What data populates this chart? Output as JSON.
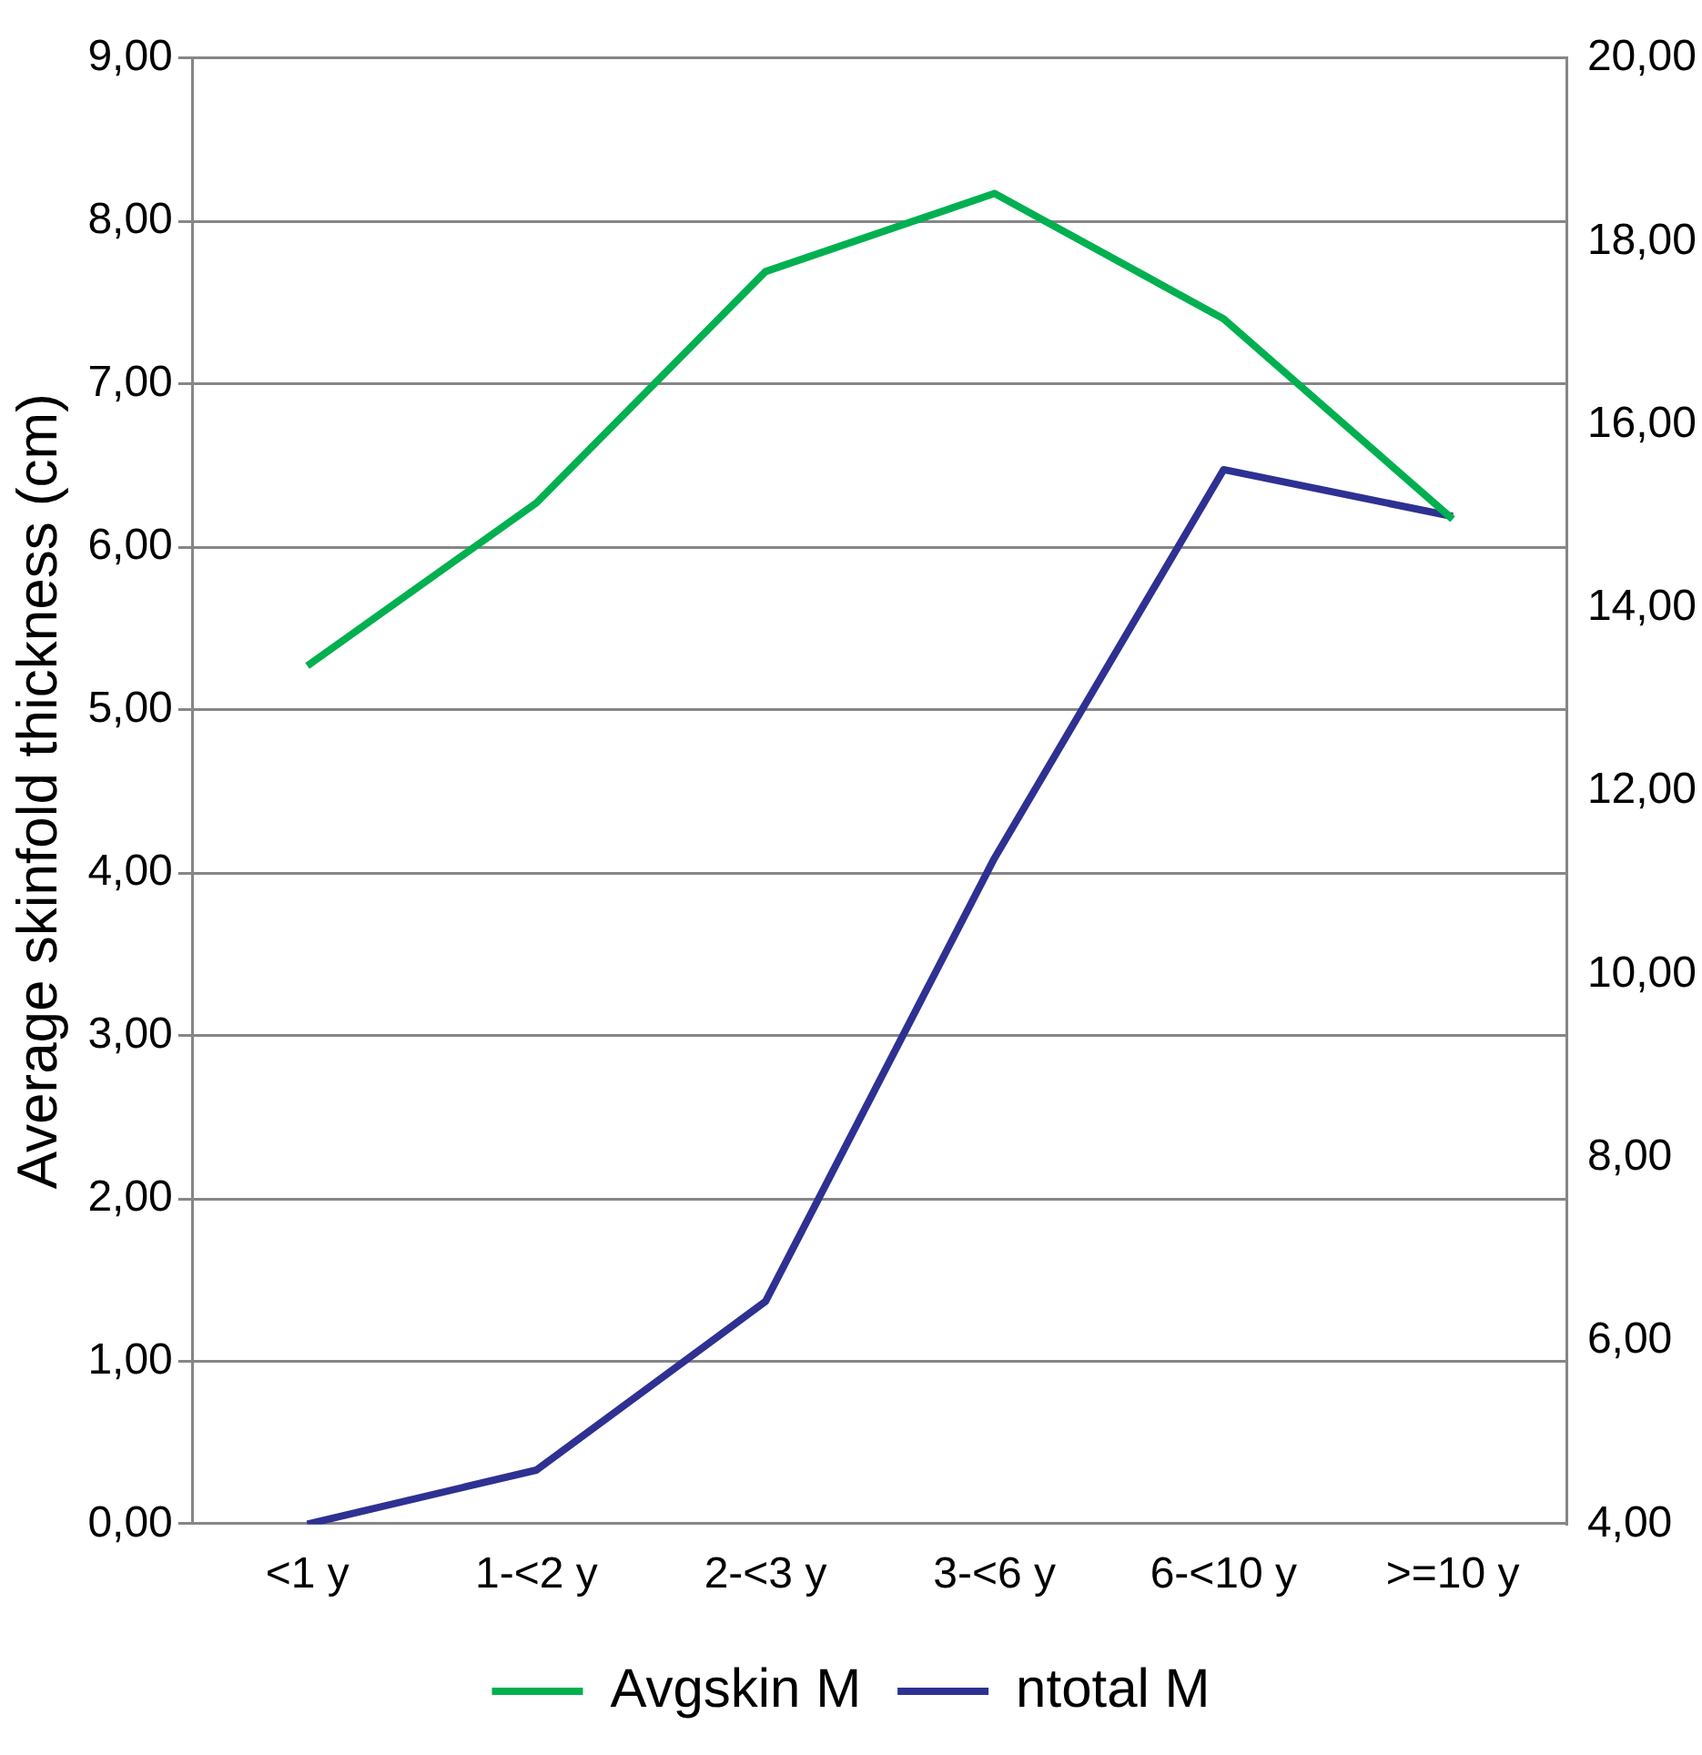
{
  "chart_data": {
    "type": "line",
    "ylabel": "Average skinfold thickness (cm)",
    "categories": [
      "<1 y",
      "1-<2 y",
      "2-<3 y",
      "3-<6 y",
      "6-<10 y",
      ">=10 y"
    ],
    "series": [
      {
        "name": "Avgskin M",
        "color": "#00b050",
        "values": [
          5.27,
          6.27,
          7.69,
          8.17,
          7.4,
          6.17
        ]
      },
      {
        "name": "ntotal M",
        "color": "#2e3192",
        "axis": "y2",
        "values": [
          4.0,
          4.59,
          6.43,
          11.27,
          15.51,
          15.0
        ]
      }
    ],
    "ylim": [
      0,
      9
    ],
    "yticks": [
      {
        "value": 0,
        "label": "0,00"
      },
      {
        "value": 1,
        "label": "1,00"
      },
      {
        "value": 2,
        "label": "2,00"
      },
      {
        "value": 3,
        "label": "3,00"
      },
      {
        "value": 4,
        "label": "4,00"
      },
      {
        "value": 5,
        "label": "5,00"
      },
      {
        "value": 6,
        "label": "6,00"
      },
      {
        "value": 7,
        "label": "7,00"
      },
      {
        "value": 8,
        "label": "8,00"
      },
      {
        "value": 9,
        "label": "9,00"
      }
    ],
    "y2lim": [
      4,
      20
    ],
    "y2ticks": [
      {
        "value": 4,
        "label": "4,00"
      },
      {
        "value": 6,
        "label": "6,00"
      },
      {
        "value": 8,
        "label": "8,00"
      },
      {
        "value": 10,
        "label": "10,00"
      },
      {
        "value": 12,
        "label": "12,00"
      },
      {
        "value": 14,
        "label": "14,00"
      },
      {
        "value": 16,
        "label": "16,00"
      },
      {
        "value": 18,
        "label": "18,00"
      },
      {
        "value": 20,
        "label": "20,00"
      }
    ],
    "grid": "y",
    "legend": "bottom",
    "marker": "none",
    "line_style": "solid"
  }
}
